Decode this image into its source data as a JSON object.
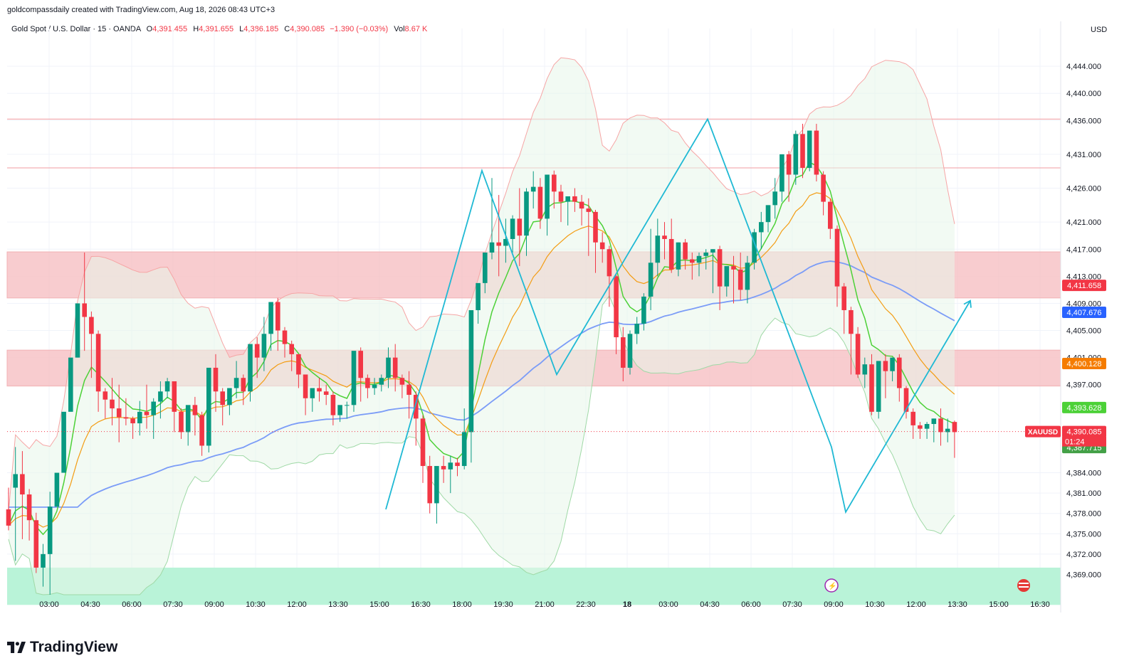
{
  "header": {
    "credit": "goldcompassdaily created with TradingView.com, Aug 18, 2026 08:43 UTC+3",
    "symbol_title": "Gold Spot / U.S. Dollar · 15 · OANDA",
    "open_label": "O",
    "open": "4,391.455",
    "high_label": "H",
    "high": "4,391.655",
    "low_label": "L",
    "low": "4,386.185",
    "close_label": "C",
    "close": "4,390.085",
    "change": "−1.390 (−0.03%)",
    "vol_label": "Vol",
    "vol": "8.67 K",
    "currency": "USD"
  },
  "brand": {
    "name": "TradingView"
  },
  "colors": {
    "up": "#089981",
    "down": "#f23645",
    "ema_fast": "#4cd137",
    "ema_mid": "#f39c12",
    "ema_slow": "#7b9cf7",
    "band": "#f6a5a5",
    "zigzag": "#1fb9d4",
    "resistance_zone": "#f7c4c7",
    "support_zone": "#b5f2d6"
  },
  "chart_data": {
    "type": "candlestick",
    "symbol": "XAUUSD",
    "interval": "15",
    "ylim": [
      4366,
      4448
    ],
    "y_ticks": [
      "4,369.000",
      "4,372.000",
      "4,375.000",
      "4,378.000",
      "4,381.000",
      "4,384.000",
      "4,397.000",
      "4,401.000",
      "4,405.000",
      "4,409.000",
      "4,413.000",
      "4,417.000",
      "4,421.000",
      "4,426.000",
      "4,431.000",
      "4,436.000",
      "4,440.000",
      "4,444.000"
    ],
    "y_tick_values": [
      4369,
      4372,
      4375,
      4378,
      4381,
      4384,
      4397,
      4401,
      4405,
      4409,
      4413,
      4417,
      4421,
      4426,
      4431,
      4436,
      4440,
      4444
    ],
    "x_labels": [
      "03:00",
      "04:30",
      "06:00",
      "07:30",
      "09:00",
      "10:30",
      "12:00",
      "13:30",
      "15:00",
      "16:30",
      "18:00",
      "19:30",
      "21:00",
      "22:30",
      "18",
      "03:00",
      "04:30",
      "06:00",
      "07:30",
      "09:00",
      "10:30",
      "12:00",
      "13:30",
      "15:00",
      "16:30"
    ],
    "price_tags": [
      {
        "label": "4,411.658",
        "value": 4411.658,
        "color": "#f23645"
      },
      {
        "label": "4,407.676",
        "value": 4407.676,
        "color": "#2962ff"
      },
      {
        "label": "4,400.128",
        "value": 4400.128,
        "color": "#f57c00"
      },
      {
        "label": "4,393.628",
        "value": 4393.628,
        "color": "#4cd137"
      },
      {
        "label": "4,390.085",
        "value": 4390.085,
        "color": "#f23645"
      },
      {
        "label": "4,387.715",
        "value": 4387.715,
        "color": "#43a047"
      }
    ],
    "countdown": "01:24",
    "symbol_tag": "XAUUSD",
    "last_price": 4390.085,
    "horizontal_lines": [
      4436.2,
      4429.0
    ],
    "zones": [
      {
        "name": "upper-resistance-zone",
        "from": 4409.8,
        "to": 4416.6
      },
      {
        "name": "lower-resistance-zone",
        "from": 4396.8,
        "to": 4402.1
      },
      {
        "name": "support-zone",
        "from": 4364.5,
        "to": 4370.0
      }
    ],
    "projection": [
      [
        4390.0,
        4378.5
      ],
      [
        4409.0
      ]
    ],
    "candles": [
      [
        4378.6,
        4381.8,
        4376.2,
        4375.5
      ],
      [
        4381.8,
        4387.8,
        4383.8,
        4371.0
      ],
      [
        4383.8,
        4387.2,
        4380.8,
        4374.2
      ],
      [
        4380.8,
        4381.6,
        4377.0,
        4374.0
      ],
      [
        4377.0,
        4378.1,
        4370.0,
        4369.2
      ],
      [
        4370.0,
        4373.5,
        4372.0,
        4367.2
      ],
      [
        4372.0,
        4381.2,
        4379.0,
        4366.0
      ],
      [
        4379.0,
        4382.7,
        4384.0,
        4381.6
      ],
      [
        4384.0,
        4388.0,
        4393.0,
        4389.0
      ],
      [
        4393.0,
        4398.0,
        4401.0,
        4397.0
      ],
      [
        4401.0,
        4403.5,
        4409.0,
        4401.0
      ],
      [
        4409.0,
        4416.5,
        4407.0,
        4402.0
      ],
      [
        4407.0,
        4407.8,
        4404.5,
        4398.0
      ],
      [
        4404.5,
        4405.0,
        4396.0,
        4393.0
      ],
      [
        4396.0,
        4396.5,
        4394.8,
        4392.0
      ],
      [
        4394.8,
        4398.0,
        4393.5,
        4391.0
      ],
      [
        4393.5,
        4397.0,
        4392.2,
        4388.5
      ],
      [
        4392.2,
        4395.0,
        4392.0,
        4391.0
      ],
      [
        4392.0,
        4392.3,
        4391.3,
        4389.0
      ],
      [
        4391.3,
        4394.6,
        4393.0,
        4389.5
      ],
      [
        4393.0,
        4397.0,
        4392.5,
        4390.5
      ],
      [
        4392.5,
        4395.0,
        4394.5,
        4389.0
      ],
      [
        4394.5,
        4397.5,
        4396.0,
        4392.0
      ],
      [
        4396.0,
        4398.0,
        4397.5,
        4395.0
      ],
      [
        4397.5,
        4397.5,
        4393.0,
        4390.0
      ],
      [
        4393.0,
        4393.5,
        4390.0,
        4389.0
      ],
      [
        4390.0,
        4393.3,
        4394.0,
        4388.0
      ],
      [
        4394.0,
        4395.2,
        4392.5,
        4389.5
      ],
      [
        4392.5,
        4393.0,
        4388.0,
        4386.5
      ],
      [
        4388.0,
        4397.5,
        4399.5,
        4387.0
      ],
      [
        4399.5,
        4401.5,
        4396.0,
        4393.0
      ],
      [
        4396.0,
        4396.5,
        4394.0,
        4391.0
      ],
      [
        4394.0,
        4396.0,
        4396.5,
        4392.5
      ],
      [
        4396.5,
        4400.5,
        4398.0,
        4395.0
      ],
      [
        4398.0,
        4398.5,
        4396.0,
        4394.0
      ],
      [
        4396.0,
        4399.0,
        4403.0,
        4394.5
      ],
      [
        4403.0,
        4404.0,
        4401.0,
        4398.0
      ],
      [
        4401.0,
        4407.0,
        4404.5,
        4399.0
      ],
      [
        4404.5,
        4408.0,
        4409.2,
        4402.0
      ],
      [
        4409.2,
        4409.8,
        4405.0,
        4402.0
      ],
      [
        4405.0,
        4405.5,
        4403.0,
        4401.0
      ],
      [
        4403.0,
        4403.5,
        4401.5,
        4399.0
      ],
      [
        4401.5,
        4401.5,
        4398.5,
        4396.5
      ],
      [
        4398.5,
        4398.0,
        4395.0,
        4392.5
      ],
      [
        4395.0,
        4395.5,
        4396.5,
        4393.0
      ],
      [
        4396.5,
        4398.0,
        4396.0,
        4394.5
      ],
      [
        4396.0,
        4397.0,
        4395.5,
        4394.0
      ],
      [
        4395.5,
        4396.0,
        4392.5,
        4391.0
      ],
      [
        4392.5,
        4393.0,
        4394.0,
        4391.5
      ],
      [
        4394.0,
        4394.5,
        4394.0,
        4392.0
      ],
      [
        4394.0,
        4398.0,
        4402.0,
        4393.0
      ],
      [
        4402.0,
        4402.5,
        4398.0,
        4394.5
      ],
      [
        4398.0,
        4398.5,
        4396.5,
        4395.0
      ],
      [
        4396.5,
        4398.0,
        4397.0,
        4395.5
      ],
      [
        4397.0,
        4398.5,
        4398.0,
        4396.0
      ],
      [
        4398.0,
        4402.5,
        4401.0,
        4396.5
      ],
      [
        4401.0,
        4403.0,
        4398.0,
        4396.0
      ],
      [
        4398.0,
        4398.5,
        4397.0,
        4395.0
      ],
      [
        4397.0,
        4399.0,
        4395.5,
        4392.0
      ],
      [
        4395.5,
        4396.0,
        4392.0,
        4388.0
      ],
      [
        4392.0,
        4392.5,
        4385.0,
        4382.5
      ],
      [
        4385.0,
        4386.5,
        4379.5,
        4378.0
      ],
      [
        4379.5,
        4384.0,
        4385.0,
        4376.5
      ],
      [
        4385.0,
        4386.5,
        4384.5,
        4382.5
      ],
      [
        4384.5,
        4386.5,
        4385.5,
        4381.0
      ],
      [
        4385.5,
        4386.2,
        4385.0,
        4383.5
      ],
      [
        4385.0,
        4393.5,
        4390.0,
        4384.5
      ],
      [
        4390.0,
        4395.5,
        4408.0,
        4385.5
      ],
      [
        4408.0,
        4411.0,
        4412.0,
        4406.0
      ],
      [
        4412.0,
        4416.5,
        4416.5,
        4410.5
      ],
      [
        4416.5,
        4427.5,
        4418.0,
        4415.5
      ],
      [
        4418.0,
        4425.0,
        4417.5,
        4413.0
      ],
      [
        4417.5,
        4421.5,
        4418.5,
        4415.0
      ],
      [
        4418.5,
        4422.0,
        4421.5,
        4416.5
      ],
      [
        4421.5,
        4426.0,
        4419.0,
        4414.5
      ],
      [
        4419.0,
        4426.0,
        4425.5,
        4416.0
      ],
      [
        4425.5,
        4428.5,
        4426.2,
        4423.0
      ],
      [
        4426.2,
        4427.5,
        4421.5,
        4420.0
      ],
      [
        4421.5,
        4427.0,
        4428.0,
        4419.0
      ],
      [
        4428.0,
        4428.6,
        4425.5,
        4423.0
      ],
      [
        4425.5,
        4426.5,
        4424.0,
        4421.0
      ],
      [
        4424.0,
        4424.5,
        4424.8,
        4420.5
      ],
      [
        4424.8,
        4426.0,
        4424.0,
        4422.5
      ],
      [
        4424.0,
        4425.0,
        4423.0,
        4420.5
      ],
      [
        4423.0,
        4424.5,
        4422.5,
        4416.0
      ],
      [
        4422.5,
        4422.8,
        4418.0,
        4413.5
      ],
      [
        4418.0,
        4419.5,
        4417.0,
        4415.0
      ],
      [
        4417.0,
        4417.5,
        4413.0,
        4408.5
      ],
      [
        4413.0,
        4413.5,
        4404.0,
        4401.5
      ],
      [
        4404.0,
        4405.5,
        4399.5,
        4397.5
      ],
      [
        4399.5,
        4405.0,
        4404.5,
        4398.5
      ],
      [
        4404.5,
        4407.0,
        4406.0,
        4403.0
      ],
      [
        4406.0,
        4410.5,
        4410.0,
        4405.0
      ],
      [
        4410.0,
        4420.0,
        4415.0,
        4408.0
      ],
      [
        4415.0,
        4421.5,
        4419.0,
        4413.0
      ],
      [
        4419.0,
        4421.0,
        4418.5,
        4415.5
      ],
      [
        4418.5,
        4421.5,
        4414.0,
        4413.5
      ],
      [
        4414.0,
        4418.0,
        4418.0,
        4413.0
      ],
      [
        4418.0,
        4418.5,
        4415.5,
        4414.0
      ],
      [
        4415.5,
        4416.5,
        4415.0,
        4412.5
      ],
      [
        4415.0,
        4416.5,
        4416.0,
        4413.0
      ],
      [
        4416.0,
        4417.0,
        4416.5,
        4414.0
      ],
      [
        4416.5,
        4417.0,
        4417.0,
        4410.5
      ],
      [
        4417.0,
        4417.5,
        4411.5,
        4408.0
      ],
      [
        4411.5,
        4413.5,
        4414.5,
        4410.0
      ],
      [
        4414.5,
        4416.0,
        4414.0,
        4409.0
      ],
      [
        4414.0,
        4416.5,
        4411.0,
        4409.5
      ],
      [
        4411.0,
        4416.0,
        4415.0,
        4409.0
      ],
      [
        4415.0,
        4420.0,
        4419.5,
        4414.0
      ],
      [
        4419.5,
        4422.5,
        4421.0,
        4417.0
      ],
      [
        4421.0,
        4423.5,
        4423.5,
        4419.5
      ],
      [
        4423.5,
        4427.5,
        4425.5,
        4421.5
      ],
      [
        4425.5,
        4431.0,
        4431.0,
        4424.0
      ],
      [
        4431.0,
        4431.5,
        4428.0,
        4424.0
      ],
      [
        4428.0,
        4434.5,
        4434.0,
        4426.5
      ],
      [
        4434.0,
        4435.5,
        4429.0,
        4427.5
      ],
      [
        4429.0,
        4434.5,
        4434.5,
        4428.5
      ],
      [
        4434.5,
        4435.5,
        4428.0,
        4427.0
      ],
      [
        4428.0,
        4428.5,
        4424.0,
        4422.0
      ],
      [
        4424.0,
        4424.5,
        4420.0,
        4418.5
      ],
      [
        4420.0,
        4420.5,
        4411.5,
        4408.5
      ],
      [
        4411.5,
        4412.0,
        4408.0,
        4404.5
      ],
      [
        4408.0,
        4408.5,
        4404.5,
        4398.5
      ],
      [
        4404.5,
        4405.5,
        4398.5,
        4398.0
      ],
      [
        4398.5,
        4401.0,
        4400.0,
        4396.5
      ],
      [
        4400.0,
        4401.5,
        4393.0,
        4392.5
      ],
      [
        4393.0,
        4400.5,
        4400.5,
        4392.0
      ],
      [
        4400.5,
        4401.5,
        4399.0,
        4395.0
      ],
      [
        4399.0,
        4401.0,
        4401.0,
        4397.5
      ],
      [
        4401.0,
        4401.5,
        4396.5,
        4394.5
      ],
      [
        4396.5,
        4396.8,
        4393.0,
        4392.0
      ],
      [
        4393.0,
        4393.5,
        4391.0,
        4389.0
      ],
      [
        4391.0,
        4391.5,
        4390.5,
        4389.0
      ],
      [
        4390.5,
        4391.5,
        4391.2,
        4389.0
      ],
      [
        4391.2,
        4392.0,
        4392.0,
        4388.5
      ],
      [
        4392.0,
        4393.5,
        4390.0,
        4388.0
      ],
      [
        4390.0,
        4392.0,
        4390.5,
        4388.5
      ],
      [
        4391.5,
        4391.7,
        4390.0,
        4386.2
      ]
    ]
  }
}
